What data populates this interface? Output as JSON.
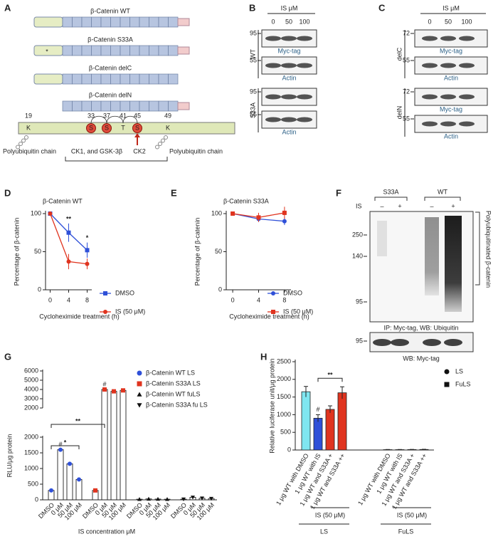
{
  "panel_labels": [
    "A",
    "B",
    "C",
    "D",
    "E",
    "F",
    "G",
    "H"
  ],
  "panel_a": {
    "constructs": [
      "β-Catenin WT",
      "β-Catenin S33A",
      "β-Catenin delC",
      "β-Catenin delN"
    ],
    "mutation_mark": "*",
    "residues": [
      "19",
      "33",
      "37",
      "41",
      "45",
      "49"
    ],
    "residue_letters": [
      "K",
      "S",
      "S",
      "T",
      "S",
      "K"
    ],
    "left_chain": "Polyubiquitin chain",
    "kinases": "CK1, and GSK-3β",
    "ck2": "CK2",
    "right_chain": "Polyubiquitin chain"
  },
  "panel_b": {
    "header": "IS μM",
    "lanes": [
      "0",
      "50",
      "100"
    ],
    "groups": [
      {
        "name": "WT",
        "blots": [
          {
            "marker": "95",
            "label": "Myc-tag"
          },
          {
            "marker": "55",
            "label": "Actin"
          }
        ]
      },
      {
        "name": "S33A",
        "blots": [
          {
            "marker": "95"
          },
          {
            "marker": "55",
            "label": "Actin"
          }
        ]
      }
    ]
  },
  "panel_c": {
    "header": "IS μM",
    "lanes": [
      "0",
      "50",
      "100"
    ],
    "groups": [
      {
        "name": "delC",
        "blots": [
          {
            "marker": "72",
            "label": "Myc-tag"
          },
          {
            "marker": "55",
            "label": "Actin"
          }
        ]
      },
      {
        "name": "delN",
        "blots": [
          {
            "marker": "72",
            "label": "Myc-tag"
          },
          {
            "marker": "55",
            "label": "Actin"
          }
        ]
      }
    ]
  },
  "panel_f": {
    "groups": [
      "S33A",
      "WT"
    ],
    "row_label": "IS",
    "signs": [
      "–",
      "+",
      "–",
      "+"
    ],
    "markers": [
      "250",
      "140",
      "95"
    ],
    "bracket_label": "Polyubiquitinated β-catenin",
    "caption": "IP: Myc-tag, WB: Ubiquitin",
    "lower_marker": "95",
    "lower_caption": "WB: Myc-tag"
  },
  "chart_data": [
    {
      "type": "line",
      "title": "β-Catenin WT",
      "x_label": "Cycloheximide treatment (h)",
      "y_label": "Percentage of β-catenin",
      "x": [
        0,
        4,
        8
      ],
      "xlim": [
        -1,
        9
      ],
      "xticks": [
        0,
        4,
        8
      ],
      "ylim": [
        0,
        100
      ],
      "yticks": [
        0,
        50,
        100
      ],
      "series": [
        {
          "name": "DMSO",
          "color": "#2f50d8",
          "marker": "square",
          "values": [
            100,
            75,
            52
          ],
          "errors": [
            0,
            12,
            10
          ]
        },
        {
          "name": "IS (50 μM)",
          "color": "#e0341f",
          "marker": "circle",
          "values": [
            100,
            37,
            34
          ],
          "errors": [
            0,
            10,
            7
          ]
        }
      ],
      "annotations": [
        {
          "x": 4,
          "text": "**"
        },
        {
          "x": 8,
          "text": "*"
        }
      ]
    },
    {
      "type": "line",
      "title": "β-Catenin S33A",
      "x_label": "Cycloheximide treatment (h)",
      "y_label": "Percentage of β-catenin",
      "x": [
        0,
        4,
        8
      ],
      "xlim": [
        -1,
        9
      ],
      "xticks": [
        0,
        4,
        8
      ],
      "ylim": [
        0,
        100
      ],
      "yticks": [
        0,
        50,
        100
      ],
      "series": [
        {
          "name": "DMSO",
          "color": "#2f50d8",
          "marker": "circle",
          "values": [
            100,
            93,
            90
          ],
          "errors": [
            0,
            4,
            5
          ]
        },
        {
          "name": "IS (50 μM)",
          "color": "#e0341f",
          "marker": "square",
          "values": [
            100,
            95,
            101
          ],
          "errors": [
            0,
            6,
            8
          ]
        }
      ],
      "annotations": []
    },
    {
      "type": "broken-bar",
      "x_label": "IS concentration μM",
      "y_label": "RLU/μg protein",
      "categories": [
        "DMSO",
        "0 μM",
        "50 μM",
        "100 μM",
        "DMSO",
        "0 μM",
        "50 μM",
        "100 μM",
        "DMSO",
        "0 μM",
        "50 μM",
        "100 μM",
        "DMSO",
        "0 μM",
        "50 μM",
        "100 μM"
      ],
      "ylim_lower": [
        0,
        2000
      ],
      "yticks_lower": [
        0,
        500,
        1000,
        1500,
        2000
      ],
      "ylim_upper": [
        2000,
        6000
      ],
      "yticks_upper": [
        2000,
        3000,
        4000,
        5000,
        6000
      ],
      "series": [
        {
          "name": "β-Catenin WT LS",
          "color": "#2f50d8",
          "marker": "circle",
          "values": [
            300,
            1600,
            1150,
            650,
            null,
            null,
            null,
            null,
            null,
            null,
            null,
            null,
            null,
            null,
            null,
            null
          ]
        },
        {
          "name": "β-Catenin S33A LS",
          "color": "#e0341f",
          "marker": "square",
          "values": [
            null,
            null,
            null,
            null,
            300,
            4000,
            3800,
            3900,
            null,
            null,
            null,
            null,
            null,
            null,
            null,
            null
          ]
        },
        {
          "name": "β-Catenin WT fuLS",
          "color": "#111111",
          "marker": "triangle",
          "values": [
            null,
            null,
            null,
            null,
            null,
            null,
            null,
            null,
            20,
            30,
            25,
            20,
            null,
            null,
            null,
            null
          ]
        },
        {
          "name": "β-Catenin S33A fu LS",
          "color": "#111111",
          "marker": "triangle-down",
          "values": [
            null,
            null,
            null,
            null,
            null,
            null,
            null,
            null,
            null,
            null,
            null,
            null,
            20,
            80,
            50,
            40
          ]
        }
      ],
      "annotations": [
        {
          "text": "#",
          "category": 1
        },
        {
          "text": "#",
          "category": 5
        },
        {
          "text": "*",
          "from": 0,
          "to": 3
        },
        {
          "text": "**",
          "from": 0,
          "to": 5
        }
      ]
    },
    {
      "type": "bar",
      "y_label": "Relative luciferase unit/μg protein",
      "categories": [
        "1 μg WT with DMSO",
        "1 μg WT with IS",
        "1 μg WT and S33A +",
        "1 μg WT and S33A ++",
        "1 μg WT with DMSO",
        "1 μg WT with IS",
        "1 μg WT and S33A +",
        "1 μg WT and S33A ++"
      ],
      "ylim": [
        0,
        2500
      ],
      "yticks": [
        0,
        500,
        1000,
        1500,
        2000,
        2500
      ],
      "series": [
        {
          "name": "LS",
          "color": "#111111",
          "marker": "circle",
          "values": [
            1650,
            900,
            1150,
            1620,
            null,
            null,
            null,
            null
          ],
          "errors": [
            150,
            100,
            100,
            170,
            null,
            null,
            null,
            null
          ],
          "colors": [
            "#7fe6f0",
            "#2f50d8",
            "#e0341f",
            "#e0341f",
            null,
            null,
            null,
            null
          ]
        },
        {
          "name": "FuLS",
          "color": "#111111",
          "marker": "square",
          "values": [
            null,
            null,
            null,
            null,
            10,
            10,
            12,
            15
          ],
          "errors": [
            null,
            null,
            null,
            null,
            5,
            5,
            5,
            6
          ],
          "colors": [
            null,
            null,
            null,
            null,
            "#111111",
            "#111111",
            "#111111",
            "#111111"
          ]
        }
      ],
      "annotations": [
        {
          "text": "#",
          "category": 1
        },
        {
          "text": "**",
          "from": 1,
          "to": 3
        }
      ],
      "group_labels": [
        {
          "text": "IS (50 μM)",
          "from": 1,
          "to": 3
        },
        {
          "text": "IS (50 μM)",
          "from": 5,
          "to": 7
        }
      ],
      "set_labels": [
        {
          "text": "LS",
          "from": 0,
          "to": 3
        },
        {
          "text": "FuLS",
          "from": 4,
          "to": 7
        }
      ]
    }
  ]
}
